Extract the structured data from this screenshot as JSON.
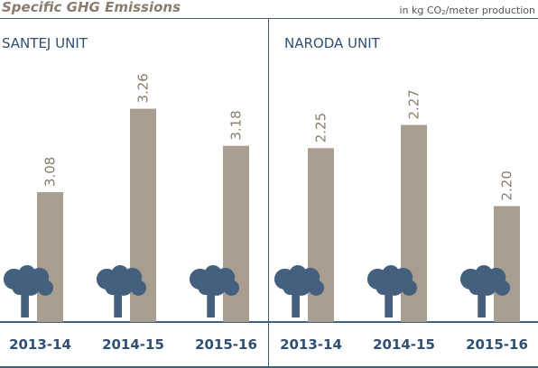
{
  "title": "Specific GHG Emissions",
  "unit_prefix": "in kg CO",
  "unit_sub": "2",
  "unit_suffix": "/meter production",
  "icon": "factory-smoke-icon",
  "colors": {
    "bar": "#a89d8f",
    "icon": "#45607f",
    "text": "#2f4f73",
    "value": "#8a7d6d"
  },
  "chart_data": [
    {
      "type": "bar",
      "label": "SANTEJ UNIT",
      "categories": [
        "2013-14",
        "2014-15",
        "2015-16"
      ],
      "values": [
        3.08,
        3.26,
        3.18
      ],
      "value_labels": [
        "3.08",
        "3.26",
        "3.18"
      ],
      "ylim": [
        2.8,
        3.3
      ]
    },
    {
      "type": "bar",
      "label": "NARODA UNIT",
      "categories": [
        "2013-14",
        "2014-15",
        "2015-16"
      ],
      "values": [
        2.25,
        2.27,
        2.2
      ],
      "value_labels": [
        "2.25",
        "2.27",
        "2.20"
      ],
      "ylim": [
        2.1,
        2.3
      ]
    }
  ]
}
